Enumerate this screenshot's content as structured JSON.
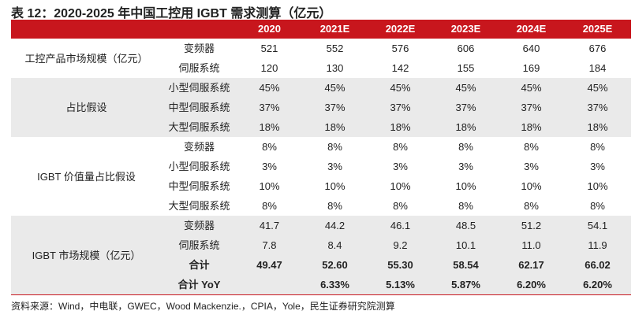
{
  "title": "表 12：2020-2025 年中国工控用 IGBT 需求测算（亿元）",
  "header": [
    "2020",
    "2021E",
    "2022E",
    "2023E",
    "2024E",
    "2025E"
  ],
  "sections": [
    {
      "label": "工控产品市场规模（亿元）",
      "shaded": false,
      "rows": [
        {
          "label": "变频器",
          "values": [
            "521",
            "552",
            "576",
            "606",
            "640",
            "676"
          ]
        },
        {
          "label": "伺服系统",
          "values": [
            "120",
            "130",
            "142",
            "155",
            "169",
            "184"
          ]
        }
      ]
    },
    {
      "label": "占比假设",
      "shaded": true,
      "rows": [
        {
          "label": "小型伺服系统",
          "values": [
            "45%",
            "45%",
            "45%",
            "45%",
            "45%",
            "45%"
          ]
        },
        {
          "label": "中型伺服系统",
          "values": [
            "37%",
            "37%",
            "37%",
            "37%",
            "37%",
            "37%"
          ]
        },
        {
          "label": "大型伺服系统",
          "values": [
            "18%",
            "18%",
            "18%",
            "18%",
            "18%",
            "18%"
          ]
        }
      ]
    },
    {
      "label": "IGBT 价值量占比假设",
      "shaded": false,
      "rows": [
        {
          "label": "变频器",
          "values": [
            "8%",
            "8%",
            "8%",
            "8%",
            "8%",
            "8%"
          ]
        },
        {
          "label": "小型伺服系统",
          "values": [
            "3%",
            "3%",
            "3%",
            "3%",
            "3%",
            "3%"
          ]
        },
        {
          "label": "中型伺服系统",
          "values": [
            "10%",
            "10%",
            "10%",
            "10%",
            "10%",
            "10%"
          ]
        },
        {
          "label": "大型伺服系统",
          "values": [
            "8%",
            "8%",
            "8%",
            "8%",
            "8%",
            "8%"
          ]
        }
      ]
    },
    {
      "label": "IGBT 市场规模（亿元）",
      "shaded": true,
      "rows": [
        {
          "label": "变频器",
          "values": [
            "41.7",
            "44.2",
            "46.1",
            "48.5",
            "51.2",
            "54.1"
          ]
        },
        {
          "label": "伺服系统",
          "values": [
            "7.8",
            "8.4",
            "9.2",
            "10.1",
            "11.0",
            "11.9"
          ]
        },
        {
          "label": "合计",
          "bold": true,
          "values": [
            "49.47",
            "52.60",
            "55.30",
            "58.54",
            "62.17",
            "66.02"
          ]
        },
        {
          "label": "合计 YoY",
          "bold": true,
          "values": [
            "",
            "6.33%",
            "5.13%",
            "5.87%",
            "6.20%",
            "6.20%"
          ]
        }
      ]
    }
  ],
  "source": "资料来源：Wind，中电联，GWEC，Wood Mackenzie.，CPIA，Yole，民生证券研究院测算"
}
